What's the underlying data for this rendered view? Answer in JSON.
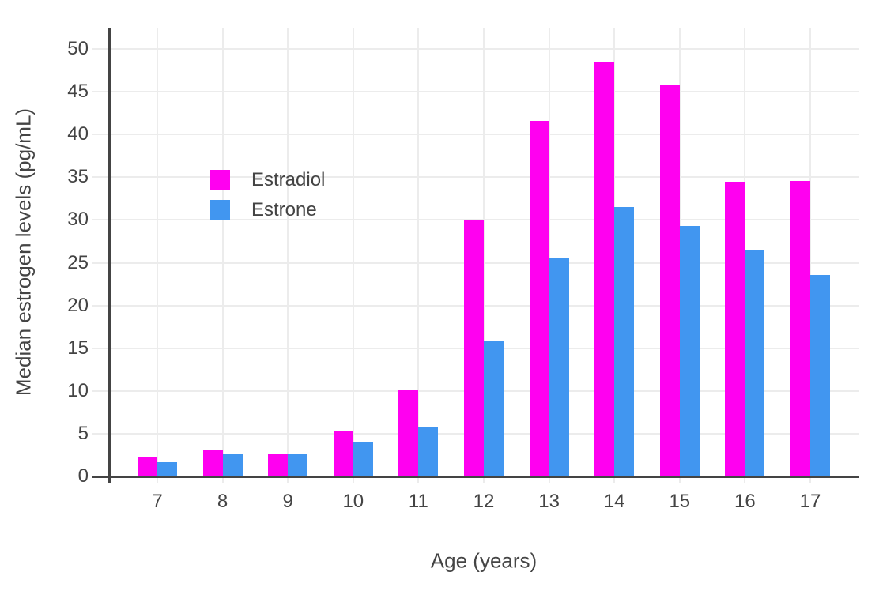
{
  "page": {
    "background": "#FFFFFF"
  },
  "chart_data": {
    "type": "bar",
    "title": "",
    "xlabel": "Age (years)",
    "ylabel": "Median estrogen levels (pg/mL)",
    "categories": [
      7,
      8,
      9,
      10,
      11,
      12,
      13,
      14,
      15,
      16,
      17
    ],
    "series": [
      {
        "name": "Estradiol",
        "color": "#FF00F0",
        "values": [
          2.2,
          3.1,
          2.7,
          5.3,
          10.2,
          30.0,
          41.6,
          48.5,
          45.8,
          34.5,
          34.6
        ]
      },
      {
        "name": "Estrone",
        "color": "#4196F0",
        "values": [
          1.7,
          2.7,
          2.6,
          4.0,
          5.8,
          15.8,
          25.5,
          31.5,
          29.3,
          26.5,
          23.6
        ]
      }
    ],
    "yticks": [
      0,
      5,
      10,
      15,
      20,
      25,
      30,
      35,
      40,
      45,
      50
    ],
    "ylim": [
      0,
      52.5
    ],
    "grid": true,
    "legend_position": "inside-top-left",
    "colors": {
      "axis_line": "#444444",
      "grid_line": "#ECECEC",
      "tick_label": "#444444",
      "axis_title": "#444444"
    }
  }
}
